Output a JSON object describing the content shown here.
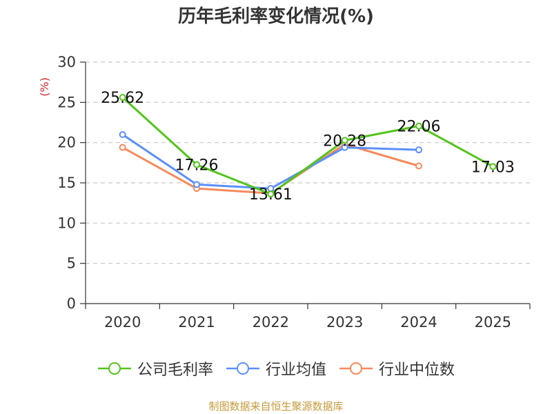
{
  "title": "历年毛利率变化情况(%)",
  "source_note": "制图数据来自恒生聚源数据库",
  "chart_data": {
    "type": "line",
    "title": "历年毛利率变化情况(%)",
    "ylabel": "(%)",
    "xlabel": "",
    "categories": [
      "2020",
      "2021",
      "2022",
      "2023",
      "2024",
      "2025"
    ],
    "ylim": [
      0,
      30
    ],
    "yticks": [
      0,
      5,
      10,
      15,
      20,
      25,
      30
    ],
    "grid": true,
    "legend_position": "bottom",
    "series": [
      {
        "name": "公司毛利率",
        "color": "#52c41a",
        "values": [
          25.62,
          17.26,
          13.61,
          20.28,
          22.06,
          17.03
        ],
        "show_labels": true
      },
      {
        "name": "行业均值",
        "color": "#5b8ff9",
        "values": [
          21.0,
          14.8,
          14.3,
          19.4,
          19.1,
          null
        ],
        "show_labels": false
      },
      {
        "name": "行业中位数",
        "color": "#f6895a",
        "values": [
          19.4,
          14.3,
          13.7,
          19.8,
          17.1,
          null
        ],
        "show_labels": false
      }
    ]
  }
}
